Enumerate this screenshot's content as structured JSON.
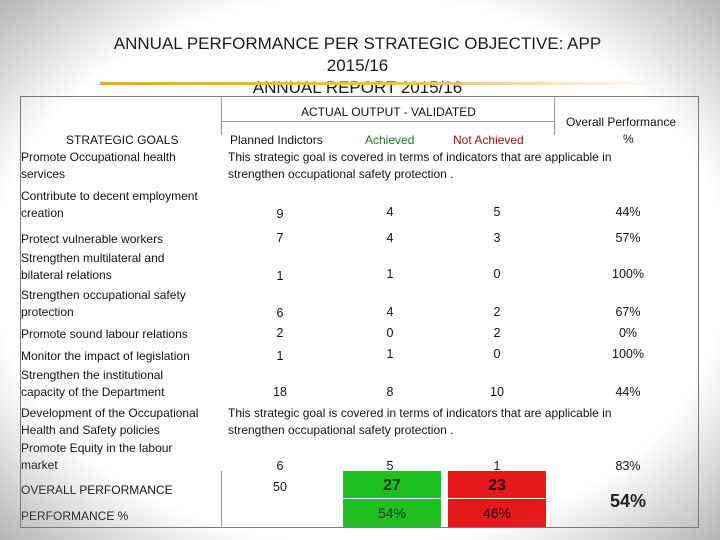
{
  "title": {
    "line1": "ANNUAL PERFORMANCE PER STRATEGIC OBJECTIVE: APP 2015/16",
    "line2": "ANNUAL REPORT 2015/16"
  },
  "header": {
    "group": "ACTUAL OUTPUT - VALIDATED",
    "goals": "STRATEGIC GOALS",
    "planned": "Planned Indictors",
    "achieved": "Achieved",
    "not_achieved": "Not Achieved",
    "overall": "Overall Performance",
    "overall_unit": "%"
  },
  "rows": [
    {
      "goal1": "Promote Occupational health",
      "goal2": "services",
      "note1": "This strategic goal is covered in terms of indicators that are applicable in",
      "note2": "strengthen occupational safety protection ."
    },
    {
      "goal1": "Contribute to decent employment",
      "goal2": "creation",
      "planned": "9",
      "achieved": "4",
      "not_achieved": "5",
      "overall": "44%"
    },
    {
      "goal1": "Protect vulnerable workers",
      "planned": "7",
      "achieved": "4",
      "not_achieved": "3",
      "overall": "57%"
    },
    {
      "goal1": "Strengthen multilateral and",
      "goal2": "bilateral relations",
      "planned": "1",
      "achieved": "1",
      "not_achieved": "0",
      "overall": "100%"
    },
    {
      "goal1": "Strengthen occupational safety",
      "goal2": "protection",
      "planned": "6",
      "achieved": "4",
      "not_achieved": "2",
      "overall": "67%"
    },
    {
      "goal1": "Promote sound labour relations",
      "planned": "2",
      "achieved": "0",
      "not_achieved": "2",
      "overall": "0%"
    },
    {
      "goal1": "Monitor the impact of legislation",
      "planned": "1",
      "achieved": "1",
      "not_achieved": "0",
      "overall": "100%"
    },
    {
      "goal1": "Strengthen the institutional",
      "goal2": "capacity of the Department",
      "planned": "18",
      "achieved": "8",
      "not_achieved": "10",
      "overall": "44%"
    },
    {
      "goal1": "Development of the Occupational",
      "goal2": "Health and Safety policies",
      "note1": "This strategic goal is covered in terms of indicators that are applicable in",
      "note2": "strengthen occupational safety protection ."
    },
    {
      "goal1": "Promote Equity in the labour",
      "goal2": "market",
      "planned": "6",
      "achieved": "5",
      "not_achieved": "1",
      "overall": "83%"
    }
  ],
  "totals": {
    "label": "OVERALL PERFORMANCE",
    "planned": "50",
    "achieved": "27",
    "not_achieved": "23",
    "pct_label": "PERFORMANCE %",
    "achieved_pct": "54%",
    "not_achieved_pct": "46%",
    "overall": "54%"
  },
  "colors": {
    "achieved_highlight": "#1fbf21",
    "not_achieved_highlight": "#e5191b",
    "title_bar": "#e9a53a"
  }
}
